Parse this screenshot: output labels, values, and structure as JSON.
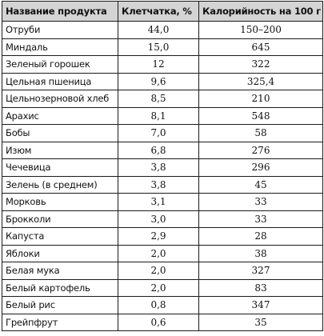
{
  "table": {
    "headers": [
      "Название продукта",
      "Клетчатка, %",
      "Калорийность на 100 г"
    ],
    "rows": [
      {
        "name": "Отруби",
        "fiber": "44,0",
        "kcal": "150–200"
      },
      {
        "name": "Миндаль",
        "fiber": "15,0",
        "kcal": "645"
      },
      {
        "name": "Зеленый горошек",
        "fiber": "12",
        "kcal": "322"
      },
      {
        "name": "Цельная пшеница",
        "fiber": "9,6",
        "kcal": "325,4"
      },
      {
        "name": "Цельнозерновой хлеб",
        "fiber": "8,5",
        "kcal": "210"
      },
      {
        "name": "Арахис",
        "fiber": "8,1",
        "kcal": "548"
      },
      {
        "name": "Бобы",
        "fiber": "7,0",
        "kcal": "58"
      },
      {
        "name": "Изюм",
        "fiber": "6,8",
        "kcal": "276"
      },
      {
        "name": "Чечевица",
        "fiber": "3,8",
        "kcal": "296"
      },
      {
        "name": "Зелень (в среднем)",
        "fiber": "3,8",
        "kcal": "45"
      },
      {
        "name": "Морковь",
        "fiber": "3,1",
        "kcal": "33"
      },
      {
        "name": "Брокколи",
        "fiber": "3,0",
        "kcal": "33"
      },
      {
        "name": "Капуста",
        "fiber": "2,9",
        "kcal": "28"
      },
      {
        "name": "Яблоки",
        "fiber": "2,0",
        "kcal": "38"
      },
      {
        "name": "Белая мука",
        "fiber": "2,0",
        "kcal": "327"
      },
      {
        "name": "Белый картофель",
        "fiber": "2,0",
        "kcal": "83"
      },
      {
        "name": "Белый рис",
        "fiber": "0,8",
        "kcal": "347"
      },
      {
        "name": "Грейпфрут",
        "fiber": "0,6",
        "kcal": "35"
      }
    ]
  },
  "colors": {
    "header_background": "#d4d4d4",
    "border": "#1a1a1a",
    "text": "#111111"
  }
}
